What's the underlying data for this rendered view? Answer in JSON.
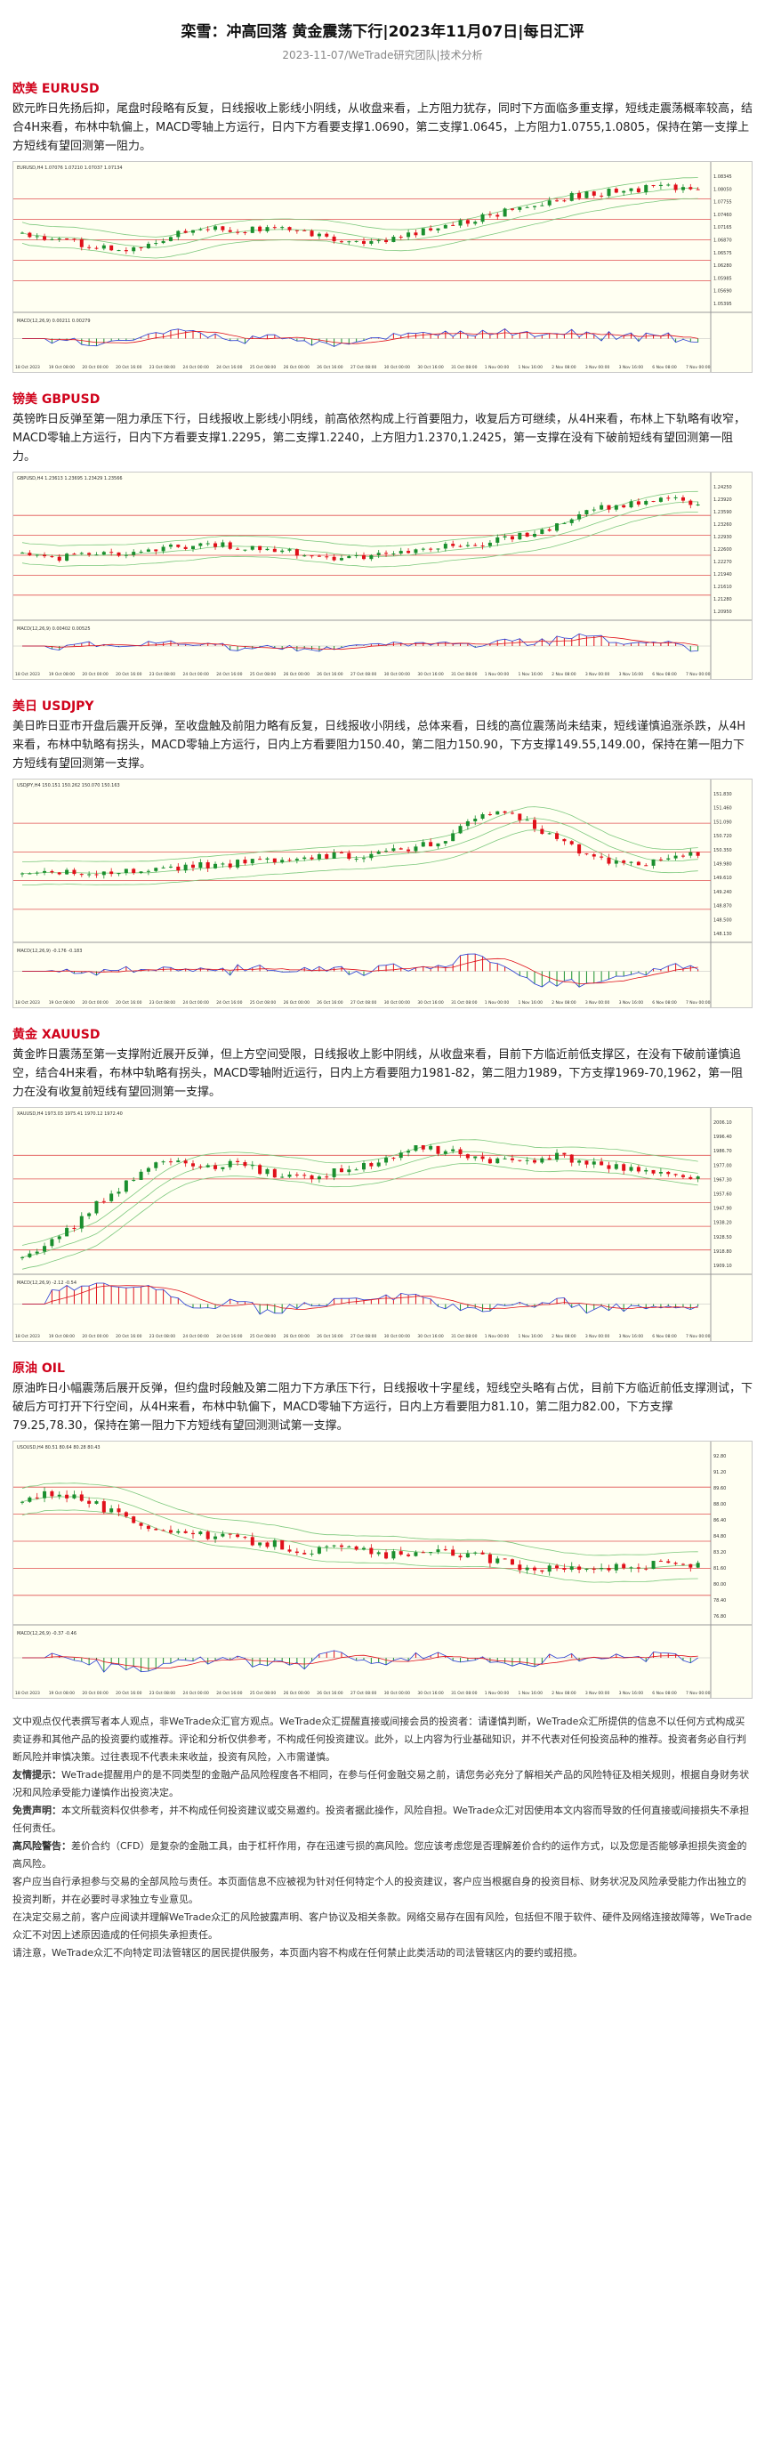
{
  "header": {
    "title": "栾雪：冲高回落 黄金震荡下行|2023年11月07日|每日汇评",
    "subtitle": "2023-11-07/WeTrade研究团队|技术分析"
  },
  "sections": [
    {
      "title": "欧美 EURUSD",
      "text": "欧元昨日先扬后抑，尾盘时段略有反复，日线报收上影线小阴线，从收盘来看，上方阻力犹存，同时下方面临多重支撑，短线走震荡概率较高，结合4H来看，布林中轨偏上，MACD零轴上方运行，日内下方看要支撑1.0690，第二支撑1.0645，上方阻力1.0755,1.0805，保持在第一支撑上方短线有望回测第一阻力。",
      "chart_label": "EURUSD,H4 1.07076 1.07210 1.07037 1.07134",
      "macd_label": "MACD(12,26,9) 0.00211 0.00279",
      "price_labels": [
        "1.08345",
        "1.08050",
        "1.07755",
        "1.07460",
        "1.07165",
        "1.06870",
        "1.06575",
        "1.06280",
        "1.05985",
        "1.05690",
        "1.05395"
      ]
    },
    {
      "title": "镑美 GBPUSD",
      "text": "英镑昨日反弹至第一阻力承压下行，日线报收上影线小阴线，前高依然构成上行首要阻力，收复后方可继续，从4H来看，布林上下轨略有收窄，MACD零轴上方运行，日内下方看要支撑1.2295，第二支撑1.2240，上方阻力1.2370,1.2425，第一支撑在没有下破前短线有望回测第一阻力。",
      "chart_label": "GBPUSD,H4 1.23613 1.23695 1.23429 1.23566",
      "macd_label": "MACD(12,26,9) 0.00402 0.00525",
      "price_labels": [
        "1.24250",
        "1.23920",
        "1.23590",
        "1.23260",
        "1.22930",
        "1.22600",
        "1.22270",
        "1.21940",
        "1.21610",
        "1.21280",
        "1.20950"
      ]
    },
    {
      "title": "美日 USDJPY",
      "text": "美日昨日亚市开盘后震开反弹，至收盘触及前阻力略有反复，日线报收小阴线，总体来看，日线的高位震荡尚未结束，短线谨慎追涨杀跌，从4H来看，布林中轨略有拐头，MACD零轴上方运行，日内上方看要阻力150.40，第二阻力150.90，下方支撑149.55,149.00，保持在第一阻力下方短线有望回测第一支撑。",
      "chart_label": "USDJPY,H4 150.151 150.262 150.070 150.163",
      "macd_label": "MACD(12,26,9) -0.176 -0.183",
      "price_labels": [
        "151.830",
        "151.460",
        "151.090",
        "150.720",
        "150.350",
        "149.980",
        "149.610",
        "149.240",
        "148.870",
        "148.500",
        "148.130"
      ]
    },
    {
      "title": "黄金 XAUUSD",
      "text": "黄金昨日震荡至第一支撑附近展开反弹，但上方空间受限，日线报收上影中阴线，从收盘来看，目前下方临近前低支撑区，在没有下破前谨慎追空，结合4H来看，布林中轨略有拐头，MACD零轴附近运行，日内上方看要阻力1981-82，第二阻力1989，下方支撑1969-70,1962，第一阻力在没有收复前短线有望回测第一支撑。",
      "chart_label": "XAUUSD,H4 1973.03 1975.41 1970.12 1972.40",
      "macd_label": "MACD(12,26,9) -2.12 -0.54",
      "price_labels": [
        "2006.10",
        "1996.40",
        "1986.70",
        "1977.00",
        "1967.30",
        "1957.60",
        "1947.90",
        "1938.20",
        "1928.50",
        "1918.80",
        "1909.10"
      ]
    },
    {
      "title": "原油 OIL",
      "text": "原油昨日小幅震荡后展开反弹，但约盘时段触及第二阻力下方承压下行，日线报收十字星线，短线空头略有占优，目前下方临近前低支撑测试，下破后方可打开下行空间，从4H来看，布林中轨偏下，MACD零轴下方运行，日内上方看要阻力81.10，第二阻力82.00，下方支撑79.25,78.30，保持在第一阻力下方短线有望回测测试第一支撑。",
      "chart_label": "USOUSD,H4 80.51 80.64 80.28 80.43",
      "macd_label": "MACD(12,26,9) -0.37 -0.46",
      "price_labels": [
        "92.80",
        "91.20",
        "89.60",
        "88.00",
        "86.40",
        "84.80",
        "83.20",
        "81.60",
        "80.00",
        "78.40",
        "76.80"
      ]
    }
  ],
  "time_labels": [
    "18 Oct 2023",
    "19 Oct 08:00",
    "20 Oct 00:00",
    "20 Oct 16:00",
    "23 Oct 08:00",
    "24 Oct 00:00",
    "24 Oct 16:00",
    "25 Oct 08:00",
    "26 Oct 00:00",
    "26 Oct 16:00",
    "27 Oct 08:00",
    "30 Oct 00:00",
    "30 Oct 16:00",
    "31 Oct 08:00",
    "1 Nov 00:00",
    "1 Nov 16:00",
    "2 Nov 08:00",
    "3 Nov 00:00",
    "3 Nov 16:00",
    "6 Nov 08:00",
    "7 Nov 00:00"
  ],
  "colors": {
    "up": "#1a8f2e",
    "down": "#e0101a",
    "band": "#7dc87d",
    "level": "#e05050",
    "signal": "#2b3fd4"
  },
  "disclaimer": [
    {
      "lead": "",
      "text": "文中观点仅代表撰写者本人观点，非WeTrade众汇官方观点。WeTrade众汇提醒直接或间接会员的投资者：请谨慎判断，WeTrade众汇所提供的信息不以任何方式构成买卖证券和其他产品的投资要约或推荐。评论和分析仅供参考，不构成任何投资建议。此外，以上内容为行业基础知识，并不代表对任何投资品种的推荐。投资者务必自行判断风险并审慎决策。过往表现不代表未来收益，投资有风险，入市需谨慎。"
    },
    {
      "lead": "友情提示：",
      "text": "WeTrade提醒用户的是不同类型的金融产品风险程度各不相同，在参与任何金融交易之前，请您务必充分了解相关产品的风险特征及相关规则，根据自身财务状况和风险承受能力谨慎作出投资决定。"
    },
    {
      "lead": "免责声明：",
      "text": "本文所载资料仅供参考，并不构成任何投资建议或交易邀约。投资者据此操作，风险自担。WeTrade众汇对因使用本文内容而导致的任何直接或间接损失不承担任何责任。"
    },
    {
      "lead": "高风险警告：",
      "text": "差价合约（CFD）是复杂的金融工具，由于杠杆作用，存在迅速亏损的高风险。您应该考虑您是否理解差价合约的运作方式，以及您是否能够承担损失资金的高风险。"
    },
    {
      "lead": "",
      "text": "客户应当自行承担参与交易的全部风险与责任。本页面信息不应被视为针对任何特定个人的投资建议，客户应当根据自身的投资目标、财务状况及风险承受能力作出独立的投资判断，并在必要时寻求独立专业意见。"
    },
    {
      "lead": "",
      "text": "在决定交易之前，客户应阅读并理解WeTrade众汇的风险披露声明、客户协议及相关条款。网络交易存在固有风险，包括但不限于软件、硬件及网络连接故障等，WeTrade众汇不对因上述原因造成的任何损失承担责任。"
    },
    {
      "lead": "",
      "text": "请注意，WeTrade众汇不向特定司法管辖区的居民提供服务，本页面内容不构成在任何禁止此类活动的司法管辖区内的要约或招揽。"
    }
  ]
}
